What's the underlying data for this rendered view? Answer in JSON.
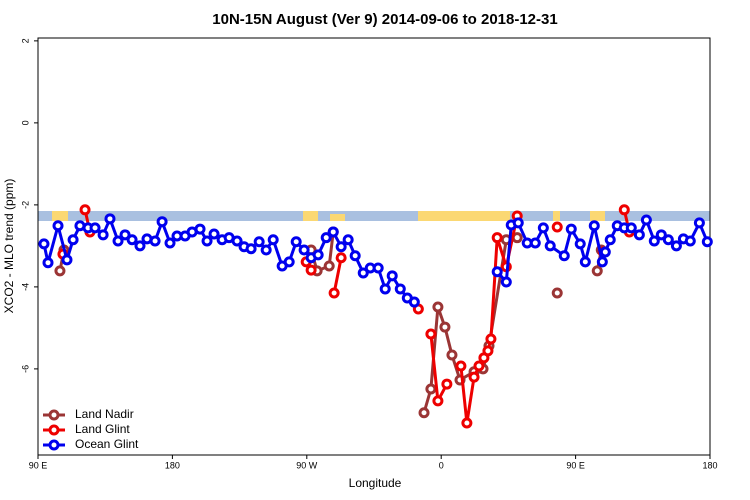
{
  "chart_data": {
    "type": "line",
    "title": "10N-15N August (Ver 9)   2014-09-06 to 2018-12-31",
    "x_label": "Longitude",
    "y_label": "XCO2 - MLO trend (ppm)",
    "xlim": [
      90,
      540
    ],
    "ylim": [
      -8.1,
      2.07
    ],
    "xticks": [
      {
        "value": 90,
        "label": "90 E"
      },
      180,
      {
        "value": 270,
        "label": "90 W"
      },
      {
        "value": 360,
        "label": "0"
      },
      {
        "value": 450,
        "label": "90 E"
      },
      {
        "value": 540,
        "label": "180"
      }
    ],
    "yticks": [
      -6,
      -4,
      -2,
      0,
      2
    ],
    "legend": "bottom-left",
    "series": [
      {
        "name": "Land Nadir",
        "color": "#9b3535",
        "x": [
          104.7,
          107.4,
          null,
          272.9,
          276.9,
          285,
          287.7,
          null,
          348.5,
          353.1,
          357.8,
          362.5,
          367.2,
          372.6,
          382,
          388,
          392,
          403.6,
          410.9,
          null,
          437.7,
          null,
          464.5,
          467.2
        ],
        "values": [
          -3.61,
          -3.1,
          null,
          -3.1,
          -3.61,
          -3.49,
          -2.66,
          null,
          -7.07,
          -6.49,
          -4.49,
          -4.98,
          -5.66,
          -6.27,
          -6.07,
          -6.0,
          -5.44,
          -2.85,
          -2.8,
          null,
          -4.15,
          null,
          -3.61,
          -3.1
        ]
      },
      {
        "name": "Land Glint",
        "color": "#ee0000",
        "x": [
          106.7,
          null,
          121.5,
          124.8,
          null,
          269.6,
          272.9,
          null,
          288.3,
          293,
          null,
          344.7,
          null,
          353.1,
          357.8,
          363.8,
          null,
          373.2,
          377.2,
          382,
          385.3,
          388.6,
          391.3,
          393.3,
          397.5,
          403.6,
          410.9,
          null,
          437.7,
          null,
          468.6,
          null,
          482.6,
          486
        ],
        "values": [
          -3.2,
          null,
          -2.12,
          -2.66,
          null,
          -3.39,
          -3.59,
          null,
          -4.15,
          -3.29,
          null,
          -4.54,
          null,
          -5.15,
          -6.78,
          -6.37,
          null,
          -5.93,
          -7.32,
          -6.2,
          -5.93,
          -5.73,
          -5.56,
          -5.27,
          -2.8,
          -3.51,
          -2.27,
          null,
          -2.54,
          null,
          -3.15,
          null,
          -2.12,
          -2.66
        ]
      },
      {
        "name": "Ocean Glint",
        "color": "#0000ee",
        "x": [
          94,
          96.7,
          103.4,
          109.4,
          113.5,
          118.1,
          123.5,
          128.2,
          133.6,
          138.2,
          143.6,
          148.3,
          153,
          158.3,
          163,
          168.4,
          173.1,
          178.4,
          183.1,
          188.5,
          193.2,
          198.5,
          203.2,
          207.9,
          213.3,
          218,
          223.3,
          228,
          232.7,
          238.1,
          242.8,
          247.5,
          253.5,
          258.2,
          262.9,
          268.2,
          272.9,
          277.6,
          283,
          287.7,
          293,
          297.7,
          302.4,
          307.8,
          312.5,
          317.8,
          322.5,
          327.2,
          332.6,
          337.3,
          342,
          null,
          397.5,
          403.6,
          406.9,
          411.6,
          417.6,
          423,
          428.4,
          433,
          442.4,
          447.1,
          453.1,
          456.5,
          462.5,
          467.9,
          469.9,
          473.2,
          477.9,
          482.6,
          487.3,
          492.7,
          497.4,
          502.7,
          507.4,
          512.1,
          517.5,
          522.2,
          526.8,
          532.9,
          538.2
        ],
        "values": [
          -2.95,
          -3.41,
          -2.51,
          -3.34,
          -2.85,
          -2.51,
          -2.56,
          -2.56,
          -2.73,
          -2.34,
          -2.88,
          -2.73,
          -2.85,
          -3.0,
          -2.83,
          -2.88,
          -2.41,
          -2.93,
          -2.76,
          -2.76,
          -2.66,
          -2.59,
          -2.88,
          -2.71,
          -2.85,
          -2.8,
          -2.88,
          -3.02,
          -3.07,
          -2.9,
          -3.1,
          -2.85,
          -3.49,
          -3.39,
          -2.9,
          -3.1,
          -3.29,
          -3.22,
          -2.8,
          -2.66,
          -3.02,
          -2.85,
          -3.24,
          -3.66,
          -3.54,
          -3.54,
          -4.05,
          -3.73,
          -4.05,
          -4.27,
          -4.37,
          null,
          -3.63,
          -3.88,
          -2.49,
          -2.44,
          -2.93,
          -2.93,
          -2.56,
          -3.0,
          -3.24,
          -2.59,
          -2.95,
          -3.39,
          -2.51,
          -3.39,
          -3.15,
          -2.85,
          -2.51,
          -2.56,
          -2.56,
          -2.73,
          -2.37,
          -2.88,
          -2.73,
          -2.85,
          -3.0,
          -2.83,
          -2.88,
          -2.44,
          -2.9
        ]
      }
    ]
  }
}
